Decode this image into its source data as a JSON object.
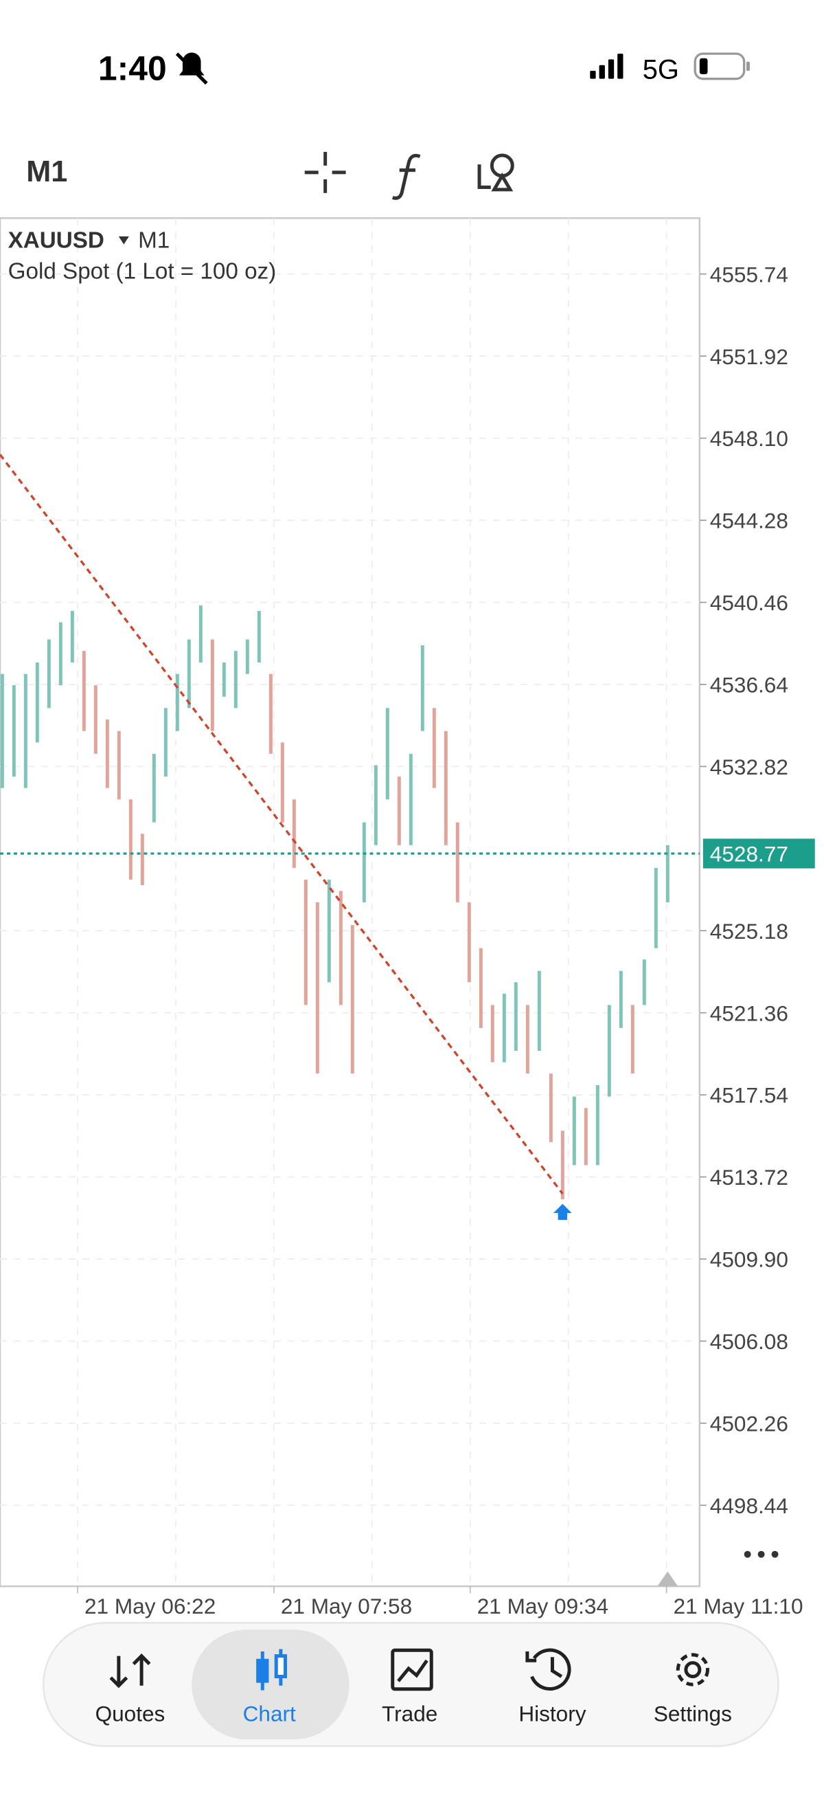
{
  "status_bar": {
    "time": "1:40",
    "network": "5G"
  },
  "toolbar": {
    "timeframe": "M1"
  },
  "chart_data": {
    "type": "candlestick",
    "symbol": "XAUUSD",
    "timeframe": "M1",
    "description": "Gold Spot (1 Lot = 100 oz)",
    "ylim": [
      4494.67,
      4558.34
    ],
    "yticks": [
      4555.74,
      4551.92,
      {
        "value": 4548.1,
        "label": "4548.10"
      },
      4544.28,
      4540.46,
      4536.64,
      4532.82,
      4525.18,
      4521.36,
      4517.54,
      4513.72,
      {
        "value": 4509.9,
        "label": "4509.90"
      },
      4506.08,
      4502.26,
      4498.44
    ],
    "x_labels": [
      "21 May 06:22",
      "21 May 07:58",
      "21 May 09:34",
      "21 May 11:10"
    ],
    "bars": {
      "low": [
        4531.82,
        4532.35,
        4531.82,
        4533.94,
        4535.54,
        4536.6,
        4537.66,
        4534.47,
        4533.41,
        4531.82,
        4531.29,
        4527.56,
        4527.3,
        4530.22,
        4532.35,
        4534.47,
        4535.54,
        4537.66,
        4534.47,
        4536.07,
        4535.54,
        4537.13,
        4537.66,
        4533.41,
        4530.22,
        4528.1,
        4521.72,
        4518.53,
        4522.78,
        4521.72,
        4518.53,
        4526.5,
        4529.16,
        4531.29,
        4529.16,
        4529.16,
        4534.47,
        4531.82,
        4529.16,
        4526.5,
        4522.78,
        4520.65,
        4519.06,
        4519.06,
        4519.59,
        4518.53,
        4519.59,
        4515.34,
        4512.68,
        4514.27,
        4514.27,
        4514.27,
        4517.46,
        4520.65,
        4518.53,
        4521.72,
        4524.37,
        4526.5
      ],
      "high": [
        4537.13,
        4536.6,
        4537.13,
        4537.66,
        4538.73,
        4539.53,
        4540.06,
        4538.2,
        4536.6,
        4535.01,
        4534.47,
        4531.29,
        4529.69,
        4533.41,
        4535.54,
        4537.13,
        4538.73,
        4540.32,
        4538.73,
        4537.66,
        4538.2,
        4538.73,
        4540.06,
        4537.13,
        4533.94,
        4531.29,
        4527.56,
        4526.5,
        4527.56,
        4527.03,
        4525.44,
        4530.22,
        4532.88,
        4535.54,
        4532.35,
        4533.41,
        4538.46,
        4535.54,
        4534.47,
        4530.22,
        4526.5,
        4524.37,
        4521.72,
        4522.25,
        4522.78,
        4521.72,
        4523.31,
        4518.53,
        4515.87,
        4517.46,
        4516.93,
        4517.99,
        4521.72,
        4523.31,
        4521.72,
        4523.84,
        4528.1,
        4529.16
      ]
    },
    "up_color": "#7fc4b8",
    "down_color": "#e0a49b",
    "current_price": {
      "value": 4528.77,
      "color": "#1b9e8c"
    },
    "trendline": {
      "start": 4547.34,
      "end": 4512.94,
      "color": "#d0442c"
    },
    "grid": true
  },
  "nav": {
    "tabs": [
      "Quotes",
      "Chart",
      "Trade",
      "History",
      "Settings"
    ],
    "active": 1
  }
}
